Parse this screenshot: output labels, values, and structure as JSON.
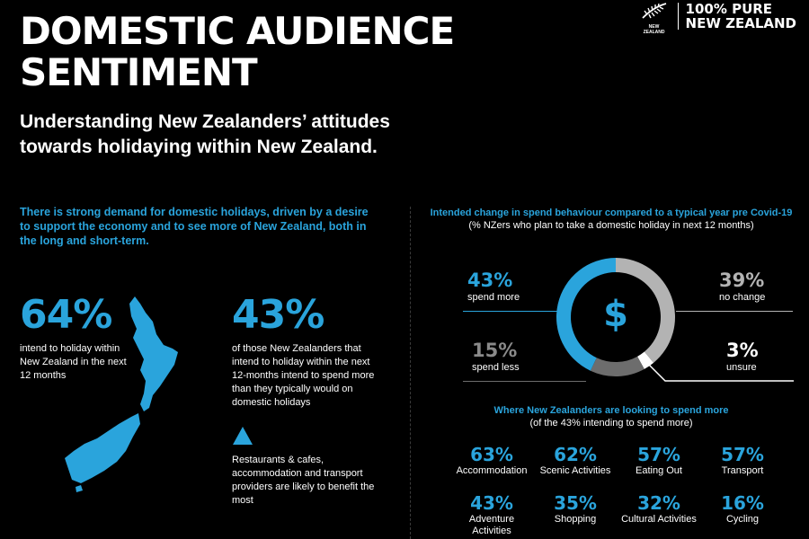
{
  "header": {
    "title": "DOMESTIC AUDIENCE\nSENTIMENT",
    "subtitle": "Understanding New Zealanders’ attitudes\ntowards holidaying within New Zealand.",
    "brand_small": "NEW ZEALAND",
    "brand_line1": "100% PURE",
    "brand_line2": "NEW ZEALAND"
  },
  "left": {
    "intro": "There is strong demand for domestic holidays, driven by a desire to support the economy and to see more of New Zealand, both in the long and short-term.",
    "stat1_value": "64%",
    "stat1_text": "intend to holiday within New Zealand in the next 12 months",
    "stat2_value": "43%",
    "stat2_text": "of those New Zealanders that intend to holiday within the next 12-months intend to spend more than they typically would on domestic holidays",
    "note": "Restaurants & cafes, accommodation and transport providers are likely to benefit the most"
  },
  "right": {
    "title": "Intended change in spend behaviour compared to a typical year pre Covid-19",
    "subtitle": "(% NZers who plan to take a domestic holiday in next 12 months)",
    "donut_symbol": "$",
    "donut": [
      {
        "value": "43%",
        "label": "spend more",
        "fraction": 0.43,
        "color": "#2aa4dc"
      },
      {
        "value": "39%",
        "label": "no change",
        "fraction": 0.39,
        "color": "#b3b3b3"
      },
      {
        "value": "3%",
        "label": "unsure",
        "fraction": 0.03,
        "color": "#ffffff"
      },
      {
        "value": "15%",
        "label": "spend less",
        "fraction": 0.15,
        "color": "#6d6d6d"
      }
    ],
    "spend_title": "Where New Zealanders are looking to spend more",
    "spend_subtitle": "(of the 43% intending to spend more)",
    "categories": [
      {
        "value": "63%",
        "label": "Accommodation"
      },
      {
        "value": "62%",
        "label": "Scenic Activities"
      },
      {
        "value": "57%",
        "label": "Eating Out"
      },
      {
        "value": "57%",
        "label": "Transport"
      },
      {
        "value": "43%",
        "label": "Adventure Activities"
      },
      {
        "value": "35%",
        "label": "Shopping"
      },
      {
        "value": "32%",
        "label": "Cultural Activities"
      },
      {
        "value": "16%",
        "label": "Cycling"
      }
    ]
  },
  "colors": {
    "accent": "#2aa4dc",
    "background": "#000000",
    "text": "#ffffff"
  }
}
